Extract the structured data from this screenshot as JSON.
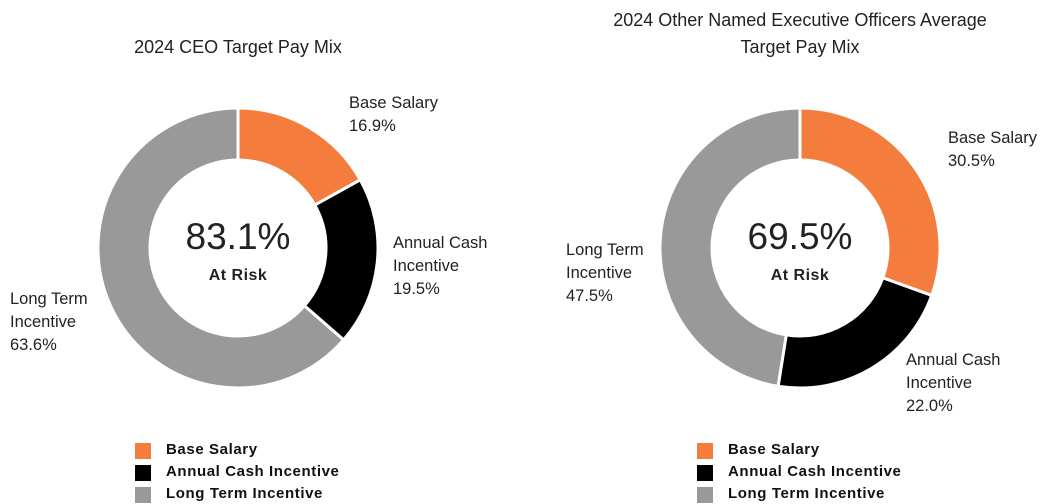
{
  "chart_data": [
    {
      "type": "pie",
      "title": "2024 CEO Target Pay Mix",
      "categories": [
        "Base Salary",
        "Annual Cash Incentive",
        "Long Term Incentive"
      ],
      "values": [
        16.9,
        19.5,
        63.6
      ],
      "value_labels": [
        "16.9%",
        "19.5%",
        "63.6%"
      ],
      "colors": [
        "#f47c3c",
        "#000000",
        "#999999"
      ],
      "center_label": "83.1%",
      "center_sublabel": "At Risk"
    },
    {
      "type": "pie",
      "title": "2024 Other Named Executive Officers Average Target Pay Mix",
      "categories": [
        "Base Salary",
        "Annual Cash Incentive",
        "Long Term Incentive"
      ],
      "values": [
        30.5,
        22.0,
        47.5
      ],
      "value_labels": [
        "30.5%",
        "22.0%",
        "47.5%"
      ],
      "colors": [
        "#f47c3c",
        "#000000",
        "#999999"
      ],
      "center_label": "69.5%",
      "center_sublabel": "At Risk"
    }
  ]
}
